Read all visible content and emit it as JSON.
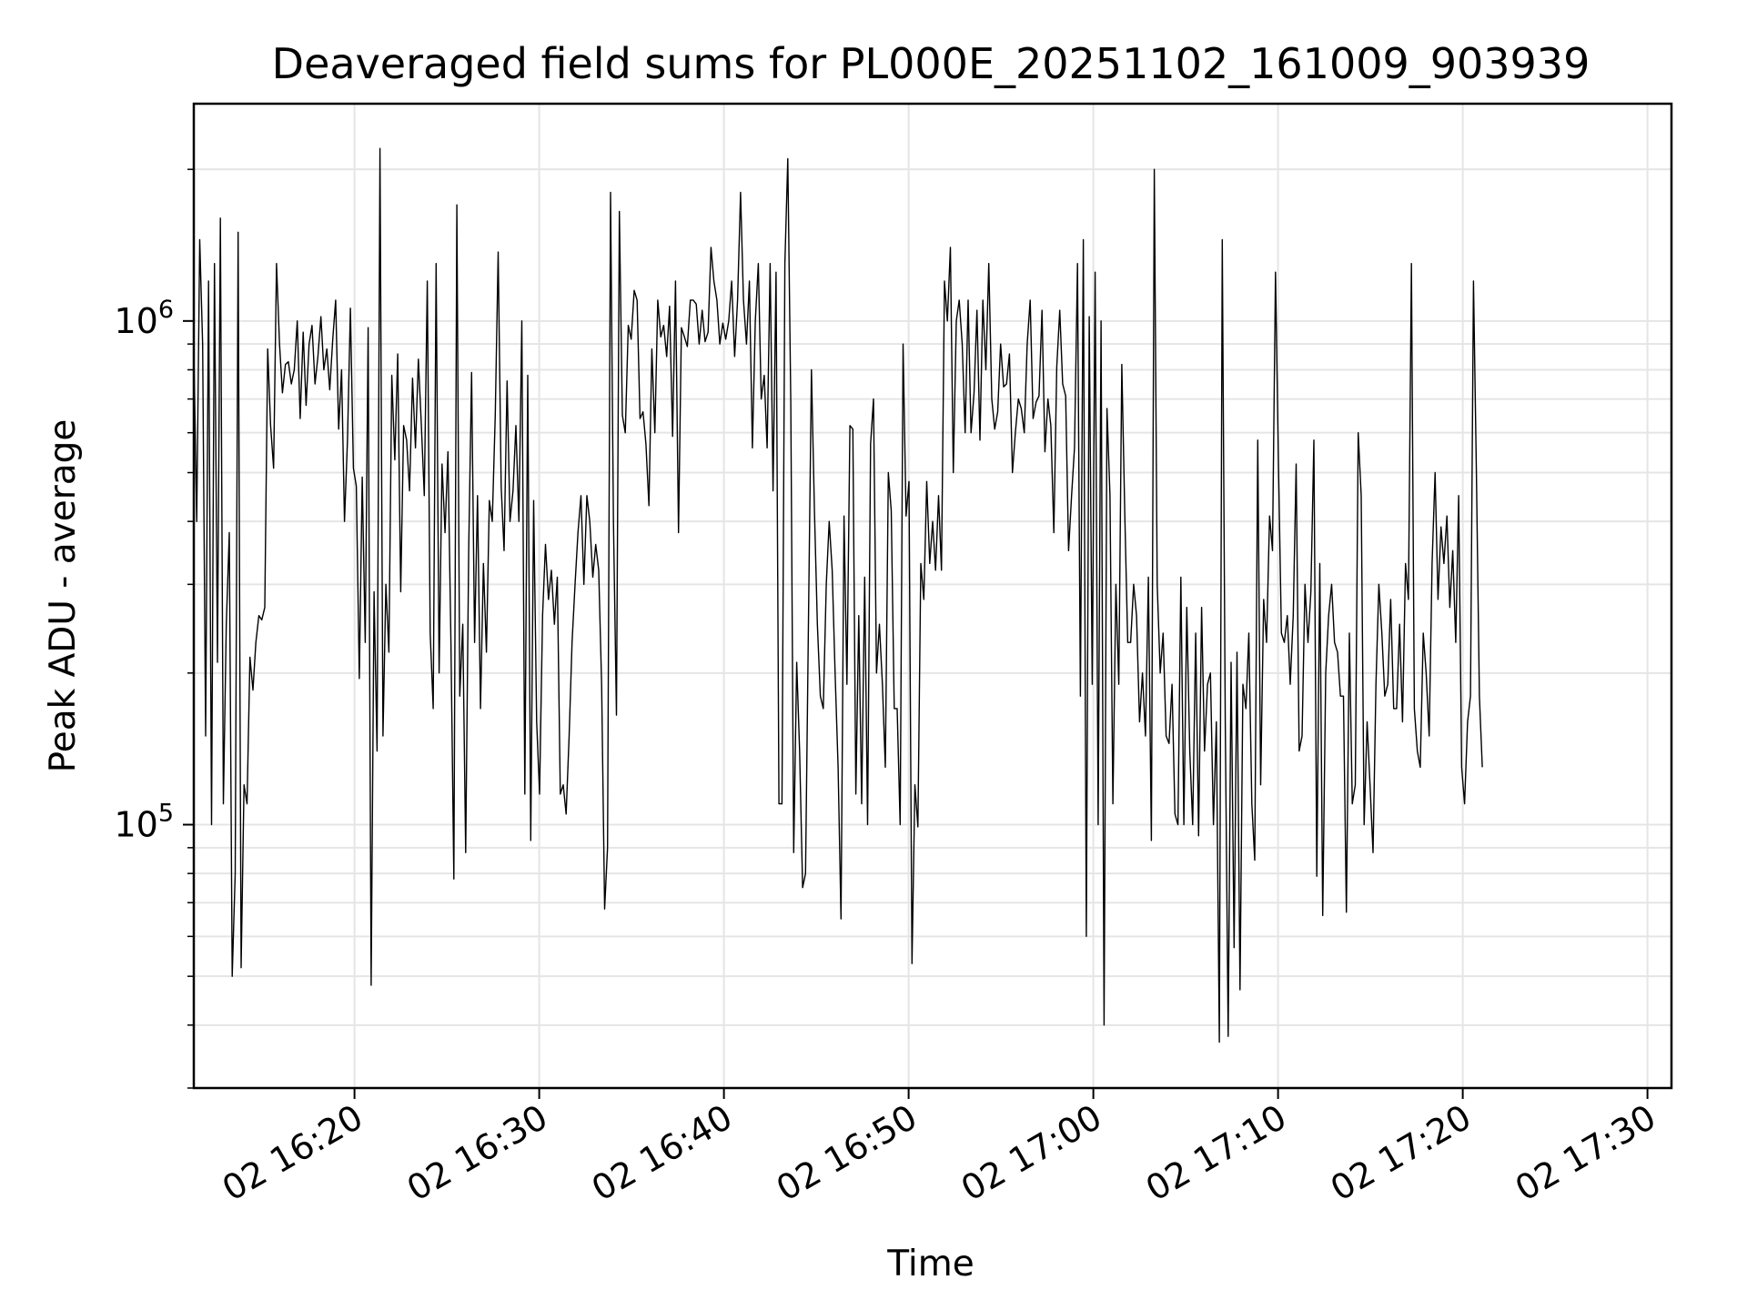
{
  "chart_data": {
    "type": "line",
    "title": "Deaveraged field sums for PL000E_20251102_161009_903939",
    "xlabel": "Time",
    "ylabel": "Peak ADU - average",
    "yscale": "log",
    "ylim": [
      30000,
      2700000
    ],
    "xlim_minutes_after_1610": [
      0,
      80
    ],
    "grid": true,
    "line_color": "#000000",
    "x_ticks": [
      {
        "minute": 8.7,
        "label": "02 16:20"
      },
      {
        "minute": 18.7,
        "label": "02 16:30"
      },
      {
        "minute": 28.7,
        "label": "02 16:40"
      },
      {
        "minute": 38.7,
        "label": "02 16:50"
      },
      {
        "minute": 48.7,
        "label": "02 17:00"
      },
      {
        "minute": 58.7,
        "label": "02 17:10"
      },
      {
        "minute": 68.7,
        "label": "02 17:20"
      },
      {
        "minute": 78.7,
        "label": "02 17:30"
      }
    ],
    "y_ticks": [
      {
        "value": 100000,
        "base": "10",
        "exp": "5"
      },
      {
        "value": 1000000,
        "base": "10",
        "exp": "6"
      }
    ],
    "series": [
      {
        "name": "Peak ADU - average",
        "x_start_minute": 0,
        "x_step_minute": 0.16,
        "values": [
          880000,
          400000,
          1450000,
          900000,
          150000,
          1200000,
          100000,
          1300000,
          210000,
          1600000,
          110000,
          250000,
          380000,
          50000,
          80000,
          1500000,
          52000,
          120000,
          110000,
          215000,
          185000,
          230000,
          260000,
          255000,
          270000,
          880000,
          620000,
          510000,
          1300000,
          900000,
          720000,
          820000,
          830000,
          750000,
          800000,
          1000000,
          640000,
          950000,
          680000,
          900000,
          980000,
          750000,
          850000,
          1020000,
          800000,
          880000,
          730000,
          920000,
          1100000,
          610000,
          800000,
          400000,
          580000,
          1060000,
          510000,
          470000,
          195000,
          490000,
          230000,
          970000,
          48000,
          290000,
          140000,
          2200000,
          150000,
          300000,
          220000,
          780000,
          530000,
          860000,
          290000,
          620000,
          580000,
          460000,
          770000,
          560000,
          840000,
          620000,
          450000,
          1200000,
          240000,
          170000,
          1300000,
          200000,
          520000,
          380000,
          550000,
          230000,
          78000,
          1700000,
          180000,
          250000,
          88000,
          350000,
          790000,
          230000,
          450000,
          170000,
          330000,
          220000,
          440000,
          400000,
          650000,
          1370000,
          470000,
          350000,
          760000,
          400000,
          460000,
          620000,
          400000,
          1000000,
          115000,
          780000,
          93000,
          440000,
          160000,
          115000,
          260000,
          360000,
          280000,
          320000,
          250000,
          310000,
          115000,
          120000,
          105000,
          150000,
          230000,
          300000,
          380000,
          450000,
          300000,
          450000,
          400000,
          310000,
          360000,
          320000,
          190000,
          68000,
          90000,
          1800000,
          400000,
          165000,
          1650000,
          650000,
          600000,
          980000,
          920000,
          1150000,
          1100000,
          640000,
          660000,
          570000,
          430000,
          880000,
          600000,
          1100000,
          930000,
          980000,
          850000,
          1070000,
          590000,
          1200000,
          380000,
          970000,
          930000,
          890000,
          1100000,
          1100000,
          1080000,
          900000,
          1050000,
          910000,
          950000,
          1400000,
          1200000,
          1100000,
          900000,
          990000,
          920000,
          1000000,
          1200000,
          850000,
          1100000,
          1800000,
          1100000,
          900000,
          1200000,
          560000,
          1000000,
          1300000,
          700000,
          780000,
          560000,
          1300000,
          460000,
          1250000,
          110000,
          110000,
          1300000,
          2100000,
          690000,
          88000,
          210000,
          140000,
          75000,
          80000,
          260000,
          800000,
          420000,
          250000,
          180000,
          170000,
          300000,
          400000,
          320000,
          200000,
          130000,
          65000,
          410000,
          190000,
          620000,
          610000,
          115000,
          260000,
          110000,
          310000,
          100000,
          570000,
          700000,
          200000,
          250000,
          190000,
          130000,
          500000,
          420000,
          170000,
          170000,
          100000,
          900000,
          410000,
          480000,
          53000,
          120000,
          99000,
          330000,
          280000,
          480000,
          330000,
          400000,
          320000,
          450000,
          320000,
          1200000,
          1000000,
          1400000,
          500000,
          1000000,
          1100000,
          900000,
          600000,
          1100000,
          600000,
          720000,
          1050000,
          580000,
          1100000,
          800000,
          1300000,
          700000,
          610000,
          660000,
          900000,
          740000,
          750000,
          860000,
          500000,
          600000,
          700000,
          670000,
          600000,
          900000,
          1100000,
          640000,
          690000,
          710000,
          1050000,
          550000,
          700000,
          620000,
          380000,
          810000,
          1050000,
          750000,
          710000,
          350000,
          450000,
          560000,
          1300000,
          180000,
          1450000,
          60000,
          1020000,
          190000,
          1250000,
          100000,
          1000000,
          40000,
          670000,
          450000,
          110000,
          300000,
          190000,
          820000,
          420000,
          230000,
          230000,
          300000,
          260000,
          160000,
          200000,
          150000,
          310000,
          93000,
          2000000,
          300000,
          200000,
          240000,
          150000,
          145000,
          190000,
          105000,
          100000,
          310000,
          100000,
          270000,
          140000,
          100000,
          240000,
          95000,
          270000,
          140000,
          190000,
          200000,
          100000,
          160000,
          37000,
          1450000,
          160000,
          38000,
          210000,
          57000,
          220000,
          47000,
          190000,
          170000,
          240000,
          110000,
          85000,
          580000,
          120000,
          280000,
          230000,
          410000,
          350000,
          1250000,
          530000,
          240000,
          230000,
          260000,
          190000,
          260000,
          520000,
          140000,
          150000,
          300000,
          230000,
          290000,
          580000,
          79000,
          330000,
          66000,
          200000,
          260000,
          300000,
          230000,
          220000,
          180000,
          180000,
          67000,
          240000,
          110000,
          120000,
          600000,
          450000,
          100000,
          160000,
          120000,
          88000,
          190000,
          300000,
          240000,
          180000,
          190000,
          280000,
          170000,
          170000,
          250000,
          160000,
          330000,
          280000,
          1300000,
          170000,
          140000,
          130000,
          240000,
          200000,
          150000,
          330000,
          500000,
          280000,
          390000,
          330000,
          410000,
          270000,
          350000,
          230000,
          450000,
          130000,
          110000,
          160000,
          180000,
          1200000,
          500000,
          180000,
          130000
        ]
      }
    ]
  }
}
